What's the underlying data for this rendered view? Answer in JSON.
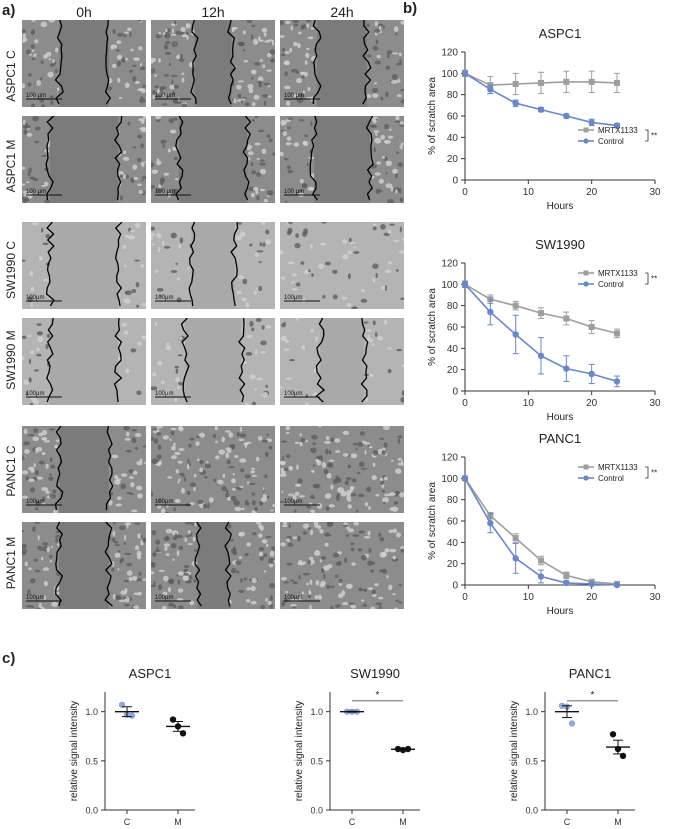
{
  "panel_a": {
    "letter": "a)",
    "columns": [
      "0h",
      "12h",
      "24h"
    ],
    "rows": [
      {
        "label": "ASPC1 C",
        "scale": "100 µm",
        "style": "dense",
        "gap": [
          0.4,
          0.3,
          0.4
        ]
      },
      {
        "label": "ASPC1 M",
        "scale": "100 µm",
        "style": "dense",
        "gap": [
          0.55,
          0.55,
          0.45
        ]
      },
      {
        "label": "SW1990 C",
        "scale": "100µm",
        "style": "sparse",
        "gap": [
          0.55,
          0.35,
          0.0
        ]
      },
      {
        "label": "SW1990 M",
        "scale": "100µm",
        "style": "sparse",
        "gap": [
          0.55,
          0.45,
          0.35
        ]
      },
      {
        "label": "PANC1 C",
        "scale": "100µm",
        "style": "dense",
        "gap": [
          0.4,
          0.0,
          0.0
        ]
      },
      {
        "label": "PANC1 M",
        "scale": "100µm",
        "style": "dense",
        "gap": [
          0.4,
          0.25,
          0.0
        ]
      }
    ]
  },
  "panel_b": {
    "letter": "b)"
  },
  "panel_c": {
    "letter": "c)"
  },
  "chart_data": [
    {
      "type": "line",
      "title": "ASPC1",
      "xlabel": "Hours",
      "ylabel": "% of scratch area",
      "xlim": [
        0,
        30
      ],
      "ylim": [
        0,
        120
      ],
      "xticks": [
        0,
        10,
        20,
        30
      ],
      "yticks": [
        0,
        20,
        40,
        60,
        80,
        100,
        120
      ],
      "significance": "**",
      "legend_position": "right",
      "series": [
        {
          "name": "MRTX1133",
          "color": "#9e9e9e",
          "marker": "square",
          "x": [
            0,
            4,
            8,
            12,
            16,
            20,
            24
          ],
          "y": [
            100,
            89,
            90,
            91,
            92,
            92,
            91
          ],
          "err": [
            3,
            8,
            10,
            10,
            10,
            10,
            9
          ]
        },
        {
          "name": "Control",
          "color": "#6b87c8",
          "marker": "circle",
          "x": [
            0,
            4,
            8,
            12,
            16,
            20,
            24
          ],
          "y": [
            100,
            85,
            72,
            66,
            60,
            54,
            51
          ],
          "err": [
            2,
            4,
            3,
            2,
            2,
            3,
            2
          ]
        }
      ]
    },
    {
      "type": "line",
      "title": "SW1990",
      "xlabel": "Hours",
      "ylabel": "% of scratch area",
      "xlim": [
        0,
        30
      ],
      "ylim": [
        0,
        120
      ],
      "xticks": [
        0,
        10,
        20,
        30
      ],
      "yticks": [
        0,
        20,
        40,
        60,
        80,
        100,
        120
      ],
      "significance": "**",
      "legend_position": "top-right",
      "series": [
        {
          "name": "MRTX1133",
          "color": "#9e9e9e",
          "marker": "square",
          "x": [
            0,
            4,
            8,
            12,
            16,
            20,
            24
          ],
          "y": [
            100,
            86,
            80,
            73,
            68,
            60,
            54
          ],
          "err": [
            3,
            4,
            4,
            5,
            6,
            6,
            4
          ]
        },
        {
          "name": "Control",
          "color": "#6b87c8",
          "marker": "circle",
          "x": [
            0,
            4,
            8,
            12,
            16,
            20,
            24
          ],
          "y": [
            100,
            74,
            53,
            33,
            21,
            16,
            9
          ],
          "err": [
            3,
            12,
            18,
            17,
            12,
            9,
            5
          ]
        }
      ]
    },
    {
      "type": "line",
      "title": "PANC1",
      "xlabel": "Hours",
      "ylabel": "% of scratch area",
      "xlim": [
        0,
        30
      ],
      "ylim": [
        0,
        120
      ],
      "xticks": [
        0,
        10,
        20,
        30
      ],
      "yticks": [
        0,
        20,
        40,
        60,
        80,
        100,
        120
      ],
      "significance": "**",
      "legend_position": "top-right",
      "series": [
        {
          "name": "MRTX1133",
          "color": "#9e9e9e",
          "marker": "square",
          "x": [
            0,
            4,
            8,
            12,
            16,
            20,
            24
          ],
          "y": [
            100,
            65,
            44,
            23,
            9,
            3,
            1
          ],
          "err": [
            2,
            3,
            4,
            4,
            3,
            2,
            1
          ]
        },
        {
          "name": "Control",
          "color": "#6b87c8",
          "marker": "circle",
          "x": [
            0,
            4,
            8,
            12,
            16,
            20,
            24
          ],
          "y": [
            100,
            58,
            25,
            8,
            2,
            1,
            0
          ],
          "err": [
            2,
            9,
            14,
            6,
            2,
            1,
            0
          ]
        }
      ]
    },
    {
      "type": "scatter",
      "title": "ASPC1",
      "ylabel": "relative signal intensity",
      "categories": [
        "C",
        "M"
      ],
      "ylim": [
        0,
        1.2
      ],
      "yticks": [
        0.0,
        0.5,
        1.0
      ],
      "significance": "",
      "points": {
        "C": [
          1.07,
          0.97,
          0.96
        ],
        "M": [
          0.92,
          0.85,
          0.78
        ]
      },
      "means": {
        "C": 1.0,
        "M": 0.85
      },
      "sem": {
        "C": 0.05,
        "M": 0.05
      },
      "colors": {
        "C": "#8fa9d8",
        "M": "#111111"
      }
    },
    {
      "type": "scatter",
      "title": "SW1990",
      "ylabel": "relative signal intensity",
      "categories": [
        "C",
        "M"
      ],
      "ylim": [
        0,
        1.2
      ],
      "yticks": [
        0.0,
        0.5,
        1.0
      ],
      "significance": "*",
      "points": {
        "C": [
          1.0,
          1.0,
          1.0
        ],
        "M": [
          0.62,
          0.61,
          0.62
        ]
      },
      "means": {
        "C": 1.0,
        "M": 0.617
      },
      "sem": {
        "C": 0.005,
        "M": 0.005
      },
      "colors": {
        "C": "#8fa9d8",
        "M": "#111111"
      }
    },
    {
      "type": "scatter",
      "title": "PANC1",
      "ylabel": "relative signal intensity",
      "categories": [
        "C",
        "M"
      ],
      "ylim": [
        0,
        1.2
      ],
      "yticks": [
        0.0,
        0.5,
        1.0
      ],
      "significance": "*",
      "points": {
        "C": [
          1.06,
          1.05,
          0.88
        ],
        "M": [
          0.77,
          0.62,
          0.55
        ]
      },
      "means": {
        "C": 1.0,
        "M": 0.64
      },
      "sem": {
        "C": 0.06,
        "M": 0.07
      },
      "colors": {
        "C": "#8fa9d8",
        "M": "#111111"
      }
    }
  ]
}
